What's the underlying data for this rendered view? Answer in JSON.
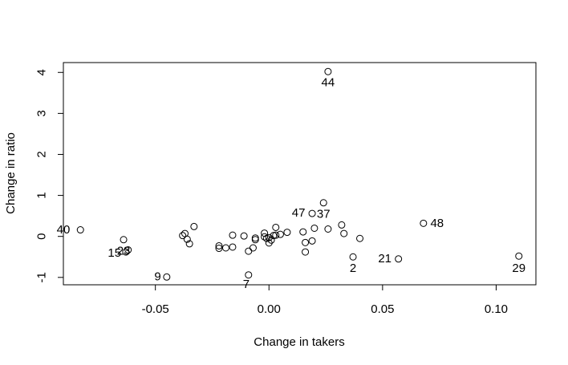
{
  "chart_data": {
    "type": "scatter",
    "title": "",
    "xlabel": "Change in takers",
    "ylabel": "Change in ratio",
    "xlim": [
      -0.0905,
      0.1175
    ],
    "ylim": [
      -1.18,
      4.24
    ],
    "x_ticks": [
      -0.05,
      0.0,
      0.05,
      0.1
    ],
    "x_tick_labels": [
      "-0.05",
      "0.00",
      "0.05",
      "0.10"
    ],
    "y_ticks": [
      -1,
      0,
      1,
      2,
      3,
      4
    ],
    "y_tick_labels": [
      "-1",
      "0",
      "1",
      "2",
      "3",
      "4"
    ],
    "grid": false,
    "points": [
      {
        "x": 0.026,
        "y": 4.02
      },
      {
        "x": -0.083,
        "y": 0.16
      },
      {
        "x": -0.064,
        "y": -0.08
      },
      {
        "x": -0.062,
        "y": -0.33
      },
      {
        "x": -0.063,
        "y": -0.38
      },
      {
        "x": -0.045,
        "y": -0.99
      },
      {
        "x": -0.038,
        "y": 0.02
      },
      {
        "x": -0.037,
        "y": 0.07
      },
      {
        "x": -0.036,
        "y": -0.07
      },
      {
        "x": -0.035,
        "y": -0.18
      },
      {
        "x": -0.033,
        "y": 0.24
      },
      {
        "x": -0.022,
        "y": -0.23
      },
      {
        "x": -0.022,
        "y": -0.29
      },
      {
        "x": -0.019,
        "y": -0.28
      },
      {
        "x": -0.016,
        "y": 0.03
      },
      {
        "x": -0.016,
        "y": -0.26
      },
      {
        "x": -0.011,
        "y": 0.01
      },
      {
        "x": -0.009,
        "y": -0.94
      },
      {
        "x": -0.009,
        "y": -0.36
      },
      {
        "x": -0.007,
        "y": -0.28
      },
      {
        "x": -0.006,
        "y": -0.08
      },
      {
        "x": -0.006,
        "y": -0.04
      },
      {
        "x": -0.002,
        "y": 0.08
      },
      {
        "x": -0.002,
        "y": -0.01
      },
      {
        "x": -0.001,
        "y": -0.05
      },
      {
        "x": 0.0,
        "y": -0.03
      },
      {
        "x": 0.0,
        "y": -0.16
      },
      {
        "x": 0.001,
        "y": -0.09
      },
      {
        "x": 0.002,
        "y": 0.02
      },
      {
        "x": 0.003,
        "y": 0.03
      },
      {
        "x": 0.003,
        "y": 0.22
      },
      {
        "x": 0.005,
        "y": 0.05
      },
      {
        "x": 0.008,
        "y": 0.1
      },
      {
        "x": 0.015,
        "y": 0.11
      },
      {
        "x": 0.016,
        "y": -0.15
      },
      {
        "x": 0.016,
        "y": -0.38
      },
      {
        "x": 0.019,
        "y": -0.11
      },
      {
        "x": 0.019,
        "y": 0.56
      },
      {
        "x": 0.02,
        "y": 0.2
      },
      {
        "x": 0.024,
        "y": 0.82
      },
      {
        "x": 0.026,
        "y": 0.18
      },
      {
        "x": 0.032,
        "y": 0.28
      },
      {
        "x": 0.033,
        "y": 0.07
      },
      {
        "x": 0.037,
        "y": -0.5
      },
      {
        "x": 0.04,
        "y": -0.05
      },
      {
        "x": 0.057,
        "y": -0.55
      },
      {
        "x": 0.068,
        "y": 0.32
      },
      {
        "x": 0.11,
        "y": -0.48
      }
    ],
    "point_labels": [
      {
        "text": "44",
        "x": 0.026,
        "y": 3.75
      },
      {
        "text": "40",
        "x": -0.0905,
        "y": 0.16
      },
      {
        "text": "23",
        "x": -0.064,
        "y": -0.36
      },
      {
        "text": "15",
        "x": -0.068,
        "y": -0.41
      },
      {
        "text": "9",
        "x": -0.049,
        "y": -0.98
      },
      {
        "text": "7",
        "x": -0.01,
        "y": -1.17
      },
      {
        "text": "47",
        "x": 0.013,
        "y": 0.57
      },
      {
        "text": "37",
        "x": 0.024,
        "y": 0.54
      },
      {
        "text": "48",
        "x": 0.074,
        "y": 0.32
      },
      {
        "text": "21",
        "x": 0.051,
        "y": -0.54
      },
      {
        "text": "2",
        "x": 0.037,
        "y": -0.78
      },
      {
        "text": "29",
        "x": 0.11,
        "y": -0.78
      }
    ]
  }
}
